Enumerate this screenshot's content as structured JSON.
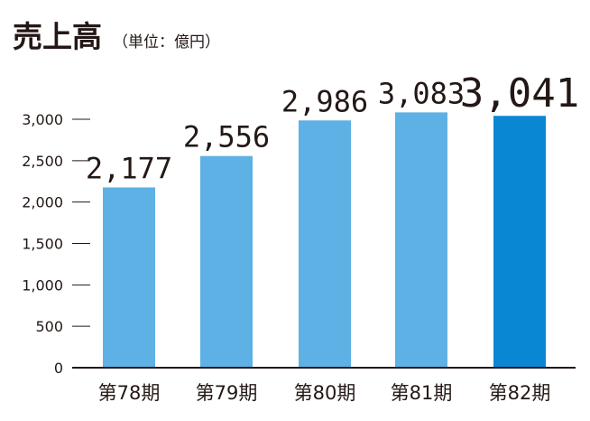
{
  "header": {
    "title": "売上高",
    "unit": "（単位：億円）"
  },
  "chart_data": {
    "type": "bar",
    "title": "売上高",
    "subtitle": "（単位：億円）",
    "categories": [
      "第78期",
      "第79期",
      "第80期",
      "第81期",
      "第82期"
    ],
    "values": [
      2177,
      2556,
      2986,
      3083,
      3041
    ],
    "value_labels": [
      "2,177",
      "2,556",
      "2,986",
      "3,083",
      "3,041"
    ],
    "highlight_index": 4,
    "ylim": [
      0,
      3000
    ],
    "yticks": [
      0,
      500,
      1000,
      1500,
      2000,
      2500,
      3000
    ],
    "ytick_labels": [
      "0",
      "500",
      "1,000",
      "1,500",
      "2,000",
      "2,500",
      "3,000"
    ],
    "xlabel": "",
    "ylabel": "",
    "grid": false,
    "colors": {
      "bar": "#5eb1e4",
      "highlight": "#0a87d2",
      "axis": "#231815",
      "text": "#231815"
    }
  }
}
